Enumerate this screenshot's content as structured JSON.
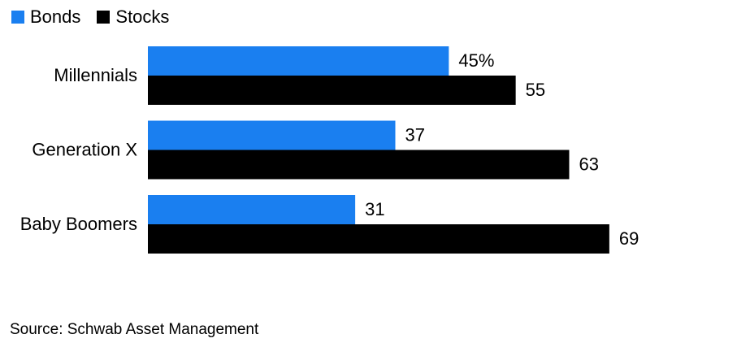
{
  "chart_data": {
    "type": "bar",
    "orientation": "horizontal",
    "categories": [
      "Millennials",
      "Generation X",
      "Baby Boomers"
    ],
    "series": [
      {
        "name": "Bonds",
        "color": "#1a7ff0",
        "values": [
          45,
          37,
          31
        ],
        "value_labels": [
          "45%",
          "37",
          "31"
        ]
      },
      {
        "name": "Stocks",
        "color": "#000000",
        "values": [
          55,
          63,
          69
        ],
        "value_labels": [
          "55",
          "63",
          "69"
        ]
      }
    ],
    "xlim": [
      0,
      100
    ],
    "grid": false,
    "legend_position": "top-left"
  },
  "source": "Source: Schwab Asset Management"
}
